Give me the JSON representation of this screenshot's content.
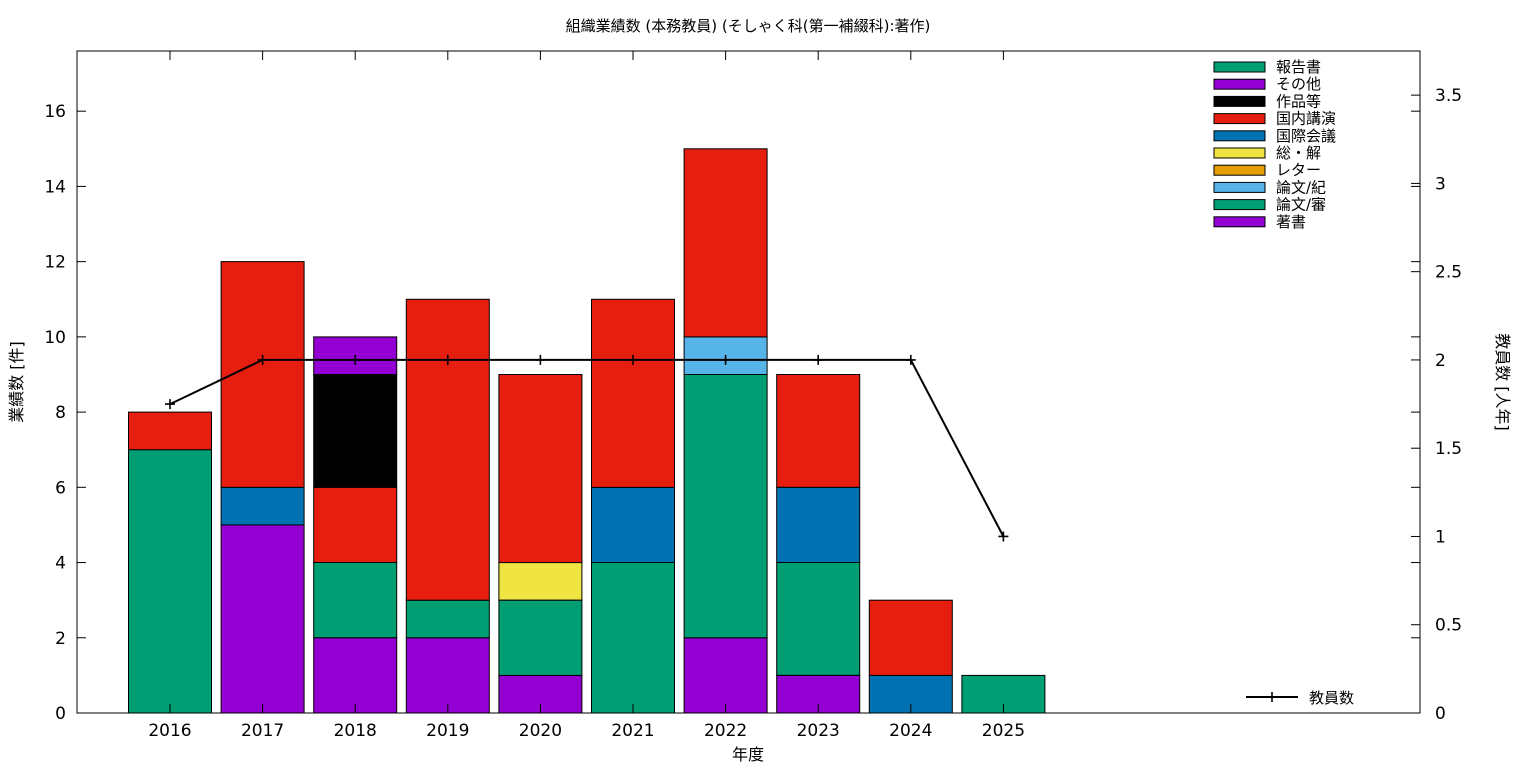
{
  "chart_data": {
    "type": "bar",
    "stacked": true,
    "title": "組織業績数 (本務教員) (そしゃく科(第一補綴科):著作)",
    "xlabel": "年度",
    "ylabel": "業績数 [件]",
    "y2label": "教員数 [人年]",
    "categories": [
      "2016",
      "2017",
      "2018",
      "2019",
      "2020",
      "2021",
      "2022",
      "2023",
      "2024",
      "2025"
    ],
    "ylim": [
      0,
      17.6
    ],
    "yticks": [
      0,
      2,
      4,
      6,
      8,
      10,
      12,
      14,
      16
    ],
    "y2lim": [
      0,
      3.75
    ],
    "y2ticks": [
      {
        "v": 0,
        "label": "0"
      },
      {
        "v": 0.5,
        "label": "0.5"
      },
      {
        "v": 1,
        "label": "1"
      },
      {
        "v": 1.5,
        "label": "1.5"
      },
      {
        "v": 2,
        "label": "2"
      },
      {
        "v": 2.5,
        "label": "2.5"
      },
      {
        "v": 3,
        "label": "3"
      },
      {
        "v": 3.5,
        "label": "3.5"
      }
    ],
    "grid": false,
    "legend_position": "top-right",
    "series": [
      {
        "name": "著書",
        "color": "#9400d3",
        "values": [
          0,
          5,
          2,
          2,
          1,
          0,
          2,
          1,
          0,
          0
        ]
      },
      {
        "name": "論文/審",
        "color": "#009e73",
        "values": [
          7,
          0,
          2,
          1,
          2,
          4,
          7,
          3,
          0,
          1
        ]
      },
      {
        "name": "論文/紀",
        "color": "#56b4e9",
        "values": [
          0,
          0,
          0,
          0,
          0,
          0,
          1,
          0,
          0,
          0
        ]
      },
      {
        "name": "レター",
        "color": "#e69f00",
        "values": [
          0,
          0,
          0,
          0,
          0,
          0,
          0,
          0,
          0,
          0
        ]
      },
      {
        "name": "総・解",
        "color": "#f0e442",
        "values": [
          0,
          0,
          0,
          0,
          1,
          0,
          0,
          0,
          0,
          0
        ]
      },
      {
        "name": "国際会議",
        "color": "#0072b2",
        "values": [
          0,
          1,
          0,
          0,
          0,
          2,
          0,
          2,
          1,
          0
        ]
      },
      {
        "name": "国内講演",
        "color": "#e51e10",
        "values": [
          1,
          6,
          2,
          8,
          5,
          5,
          5,
          3,
          2,
          0
        ]
      },
      {
        "name": "作品等",
        "color": "#000000",
        "values": [
          0,
          0,
          3,
          0,
          0,
          0,
          0,
          0,
          0,
          0
        ]
      },
      {
        "name": "その他",
        "color": "#9400d3",
        "values": [
          0,
          0,
          1,
          0,
          0,
          0,
          0,
          0,
          0,
          0
        ]
      },
      {
        "name": "報告書",
        "color": "#009e73",
        "values": [
          0,
          0,
          0,
          0,
          0,
          0,
          0,
          0,
          0,
          0
        ]
      }
    ],
    "line_series": {
      "name": "教員数",
      "axis": "y2",
      "color": "#000000",
      "values": [
        1.75,
        2,
        2,
        2,
        2,
        2,
        2,
        2,
        2,
        1
      ]
    }
  }
}
